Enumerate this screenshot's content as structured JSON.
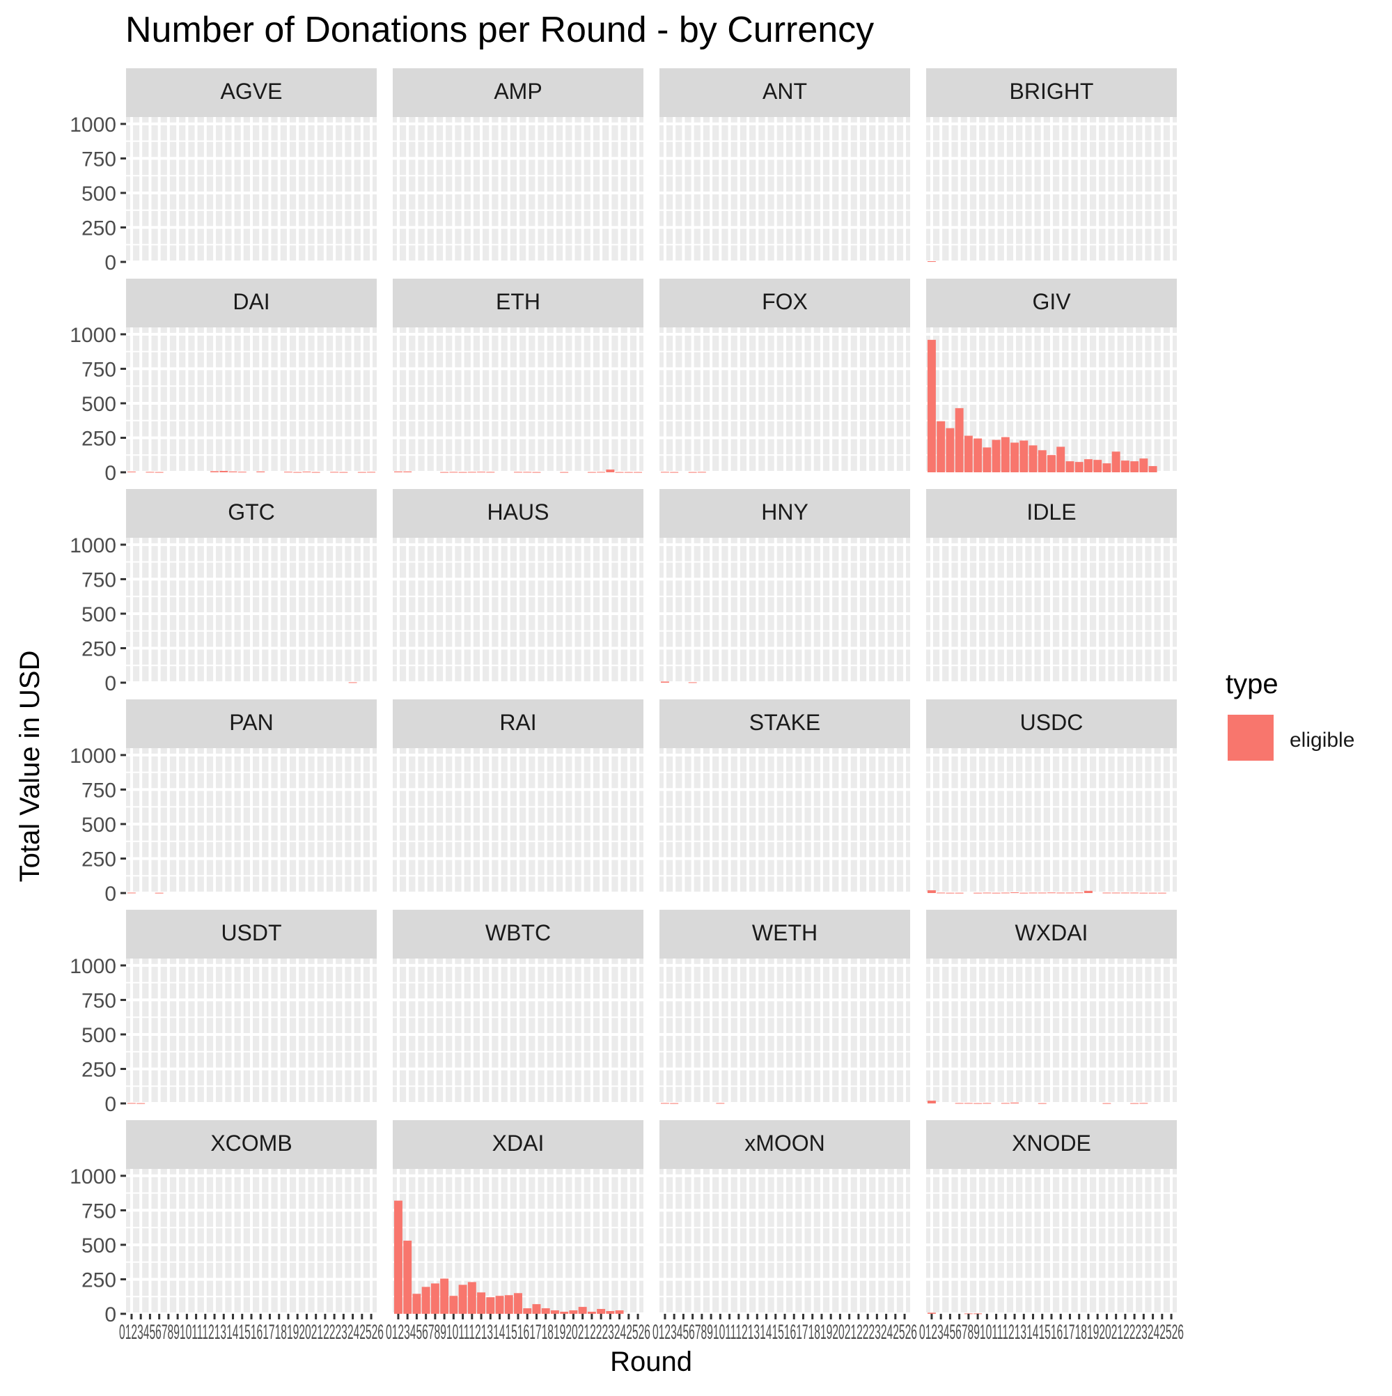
{
  "chart_data": {
    "type": "bar",
    "title": "Number of Donations per Round - by Currency",
    "xlabel": "Round",
    "ylabel": "Total Value in USD",
    "ylim": [
      0,
      1050
    ],
    "y_ticks": [
      0,
      250,
      500,
      750,
      1000
    ],
    "x_tick_labels": "01234567891011121314151617181920212223242526",
    "rounds": [
      0,
      1,
      2,
      3,
      4,
      5,
      6,
      7,
      8,
      9,
      10,
      11,
      12,
      13,
      14,
      15,
      16,
      17,
      18,
      19,
      20,
      21,
      22,
      23,
      24,
      25,
      26
    ],
    "facet_layout": "wrap 4 columns",
    "legend": {
      "title": "type",
      "items": [
        "eligible"
      ],
      "position": "right"
    },
    "colors": {
      "eligible": "#F8766D",
      "panel_bg": "#EBEBEB",
      "strip_bg": "#D9D9D9",
      "grid": "#FFFFFF"
    },
    "grid": true,
    "panels": [
      {
        "currency": "AGVE",
        "values": [
          0,
          0,
          0,
          0,
          0,
          0,
          0,
          0,
          0,
          0,
          0,
          0,
          0,
          0,
          0,
          0,
          0,
          0,
          0,
          0,
          0,
          0,
          0,
          0,
          0,
          0,
          0
        ]
      },
      {
        "currency": "AMP",
        "values": [
          0,
          0,
          0,
          0,
          0,
          0,
          0,
          0,
          0,
          0,
          0,
          0,
          0,
          0,
          0,
          0,
          0,
          0,
          0,
          0,
          0,
          0,
          0,
          0,
          0,
          0,
          0
        ]
      },
      {
        "currency": "ANT",
        "values": [
          0,
          0,
          0,
          0,
          0,
          0,
          0,
          0,
          0,
          0,
          0,
          0,
          0,
          0,
          0,
          0,
          0,
          0,
          0,
          0,
          0,
          0,
          0,
          0,
          0,
          0,
          0
        ]
      },
      {
        "currency": "BRIGHT",
        "values": [
          5,
          0,
          0,
          0,
          0,
          0,
          0,
          0,
          0,
          0,
          0,
          0,
          0,
          0,
          0,
          0,
          0,
          0,
          0,
          0,
          0,
          0,
          0,
          0,
          0,
          0,
          0
        ]
      },
      {
        "currency": "DAI",
        "values": [
          5,
          0,
          3,
          2,
          0,
          0,
          0,
          0,
          0,
          8,
          10,
          6,
          4,
          0,
          6,
          0,
          0,
          4,
          2,
          5,
          2,
          0,
          3,
          2,
          0,
          2,
          3
        ]
      },
      {
        "currency": "ETH",
        "values": [
          6,
          6,
          0,
          0,
          0,
          2,
          3,
          2,
          3,
          4,
          3,
          0,
          0,
          3,
          3,
          2,
          0,
          0,
          2,
          0,
          0,
          2,
          3,
          20,
          2,
          2,
          2
        ]
      },
      {
        "currency": "FOX",
        "values": [
          3,
          2,
          0,
          2,
          3,
          0,
          0,
          0,
          0,
          0,
          0,
          0,
          0,
          0,
          0,
          0,
          0,
          0,
          0,
          0,
          0,
          0,
          0,
          0,
          0,
          0,
          0
        ]
      },
      {
        "currency": "GIV",
        "values": [
          960,
          370,
          320,
          465,
          265,
          245,
          180,
          235,
          255,
          215,
          230,
          195,
          160,
          125,
          185,
          80,
          75,
          95,
          90,
          65,
          150,
          85,
          80,
          100,
          45,
          0,
          0
        ]
      },
      {
        "currency": "GTC",
        "values": [
          0,
          0,
          0,
          0,
          0,
          0,
          0,
          0,
          0,
          0,
          0,
          0,
          0,
          0,
          0,
          0,
          0,
          0,
          0,
          0,
          0,
          0,
          0,
          0,
          3,
          0,
          0
        ]
      },
      {
        "currency": "HAUS",
        "values": [
          0,
          0,
          0,
          0,
          0,
          0,
          0,
          0,
          0,
          0,
          0,
          0,
          0,
          0,
          0,
          0,
          0,
          0,
          0,
          0,
          0,
          0,
          0,
          0,
          0,
          0,
          0
        ]
      },
      {
        "currency": "HNY",
        "values": [
          8,
          0,
          0,
          3,
          0,
          0,
          0,
          0,
          0,
          0,
          0,
          0,
          0,
          0,
          0,
          0,
          0,
          0,
          0,
          0,
          0,
          0,
          0,
          0,
          0,
          0,
          0
        ]
      },
      {
        "currency": "IDLE",
        "values": [
          0,
          0,
          0,
          0,
          0,
          0,
          0,
          0,
          0,
          0,
          0,
          0,
          0,
          0,
          0,
          0,
          0,
          0,
          0,
          0,
          0,
          0,
          0,
          0,
          0,
          0,
          0
        ]
      },
      {
        "currency": "PAN",
        "values": [
          3,
          0,
          0,
          2,
          0,
          0,
          0,
          0,
          0,
          0,
          0,
          0,
          0,
          0,
          0,
          0,
          0,
          0,
          0,
          0,
          0,
          0,
          0,
          0,
          0,
          0,
          0
        ]
      },
      {
        "currency": "RAI",
        "values": [
          0,
          0,
          0,
          0,
          0,
          0,
          0,
          0,
          0,
          0,
          0,
          0,
          0,
          0,
          0,
          0,
          0,
          0,
          0,
          0,
          0,
          0,
          0,
          0,
          0,
          0,
          0
        ]
      },
      {
        "currency": "STAKE",
        "values": [
          0,
          0,
          0,
          0,
          0,
          0,
          0,
          0,
          0,
          0,
          0,
          0,
          0,
          0,
          0,
          0,
          0,
          0,
          0,
          0,
          0,
          0,
          0,
          0,
          0,
          0,
          0
        ]
      },
      {
        "currency": "USDC",
        "values": [
          20,
          3,
          2,
          2,
          0,
          2,
          3,
          2,
          3,
          5,
          2,
          3,
          3,
          4,
          3,
          3,
          4,
          16,
          0,
          3,
          3,
          3,
          3,
          2,
          2,
          2,
          0
        ]
      },
      {
        "currency": "USDT",
        "values": [
          3,
          2,
          0,
          0,
          0,
          0,
          0,
          0,
          0,
          0,
          0,
          0,
          0,
          0,
          0,
          0,
          0,
          0,
          0,
          0,
          0,
          0,
          0,
          0,
          0,
          0,
          0
        ]
      },
      {
        "currency": "WBTC",
        "values": [
          0,
          0,
          0,
          0,
          0,
          0,
          0,
          0,
          0,
          0,
          0,
          0,
          0,
          0,
          0,
          0,
          0,
          0,
          0,
          0,
          0,
          0,
          0,
          0,
          0,
          0,
          0
        ]
      },
      {
        "currency": "WETH",
        "values": [
          3,
          2,
          0,
          0,
          0,
          0,
          3,
          0,
          0,
          0,
          0,
          0,
          0,
          0,
          0,
          0,
          0,
          0,
          0,
          0,
          0,
          0,
          0,
          0,
          0,
          0,
          0
        ]
      },
      {
        "currency": "WXDAI",
        "values": [
          20,
          0,
          0,
          3,
          3,
          2,
          3,
          0,
          3,
          6,
          0,
          0,
          2,
          0,
          0,
          0,
          0,
          0,
          0,
          2,
          0,
          0,
          2,
          3,
          0,
          0,
          0
        ]
      },
      {
        "currency": "XCOMB",
        "values": [
          0,
          0,
          0,
          0,
          0,
          0,
          0,
          0,
          0,
          0,
          0,
          0,
          0,
          0,
          0,
          0,
          0,
          0,
          0,
          0,
          0,
          0,
          0,
          0,
          0,
          0,
          0
        ]
      },
      {
        "currency": "XDAI",
        "values": [
          820,
          530,
          145,
          195,
          220,
          255,
          130,
          210,
          230,
          155,
          120,
          130,
          135,
          150,
          40,
          70,
          40,
          25,
          15,
          25,
          50,
          15,
          35,
          20,
          25,
          0,
          0
        ]
      },
      {
        "currency": "xMOON",
        "values": [
          0,
          0,
          0,
          0,
          0,
          0,
          0,
          0,
          0,
          0,
          0,
          0,
          0,
          0,
          0,
          0,
          0,
          0,
          0,
          0,
          0,
          0,
          0,
          0,
          0,
          0,
          0
        ]
      },
      {
        "currency": "XNODE",
        "values": [
          8,
          0,
          0,
          0,
          3,
          3,
          0,
          0,
          0,
          0,
          0,
          0,
          0,
          0,
          0,
          0,
          0,
          0,
          0,
          0,
          0,
          0,
          0,
          0,
          0,
          0,
          0
        ]
      }
    ]
  }
}
